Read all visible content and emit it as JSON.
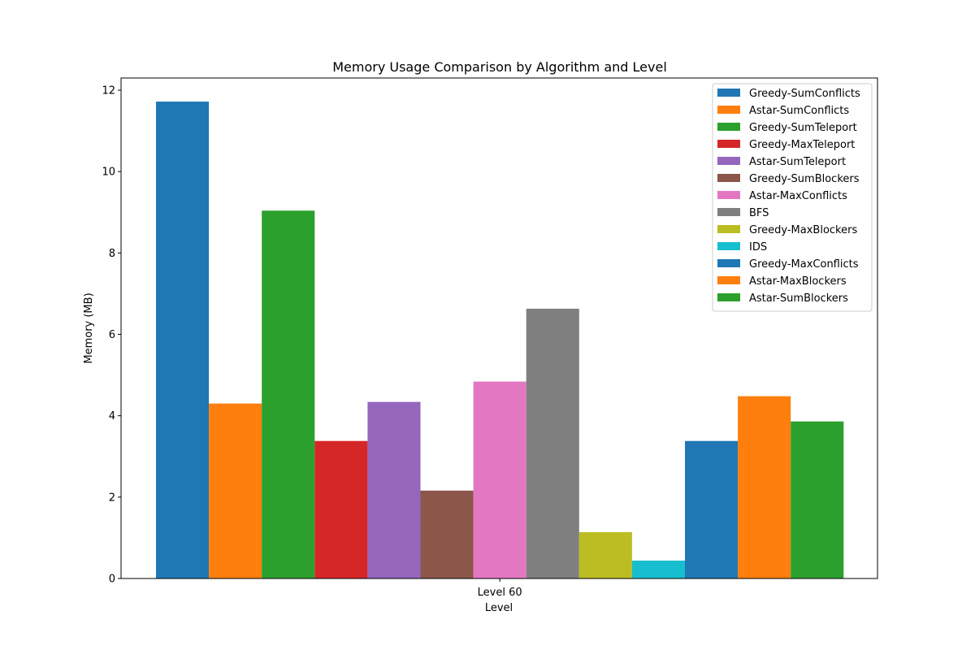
{
  "chart_data": {
    "type": "bar",
    "title": "Memory Usage Comparison by Algorithm and Level",
    "xlabel": "Level",
    "ylabel": "Memory (MB)",
    "categories": [
      "Level 60"
    ],
    "ylim": [
      0,
      12.3
    ],
    "yticks": [
      0,
      2,
      4,
      6,
      8,
      10,
      12
    ],
    "grid": false,
    "legend_position": "top-right",
    "series": [
      {
        "name": "Greedy-SumConflicts",
        "color": "#1f77b4",
        "values": [
          11.72
        ]
      },
      {
        "name": "Astar-SumConflicts",
        "color": "#ff7f0e",
        "values": [
          4.3
        ]
      },
      {
        "name": "Greedy-SumTeleport",
        "color": "#2ca02c",
        "values": [
          9.04
        ]
      },
      {
        "name": "Greedy-MaxTeleport",
        "color": "#d62728",
        "values": [
          3.38
        ]
      },
      {
        "name": "Astar-SumTeleport",
        "color": "#9467bd",
        "values": [
          4.34
        ]
      },
      {
        "name": "Greedy-SumBlockers",
        "color": "#8c564b",
        "values": [
          2.16
        ]
      },
      {
        "name": "Astar-MaxConflicts",
        "color": "#e377c2",
        "values": [
          4.84
        ]
      },
      {
        "name": "BFS",
        "color": "#7f7f7f",
        "values": [
          6.63
        ]
      },
      {
        "name": "Greedy-MaxBlockers",
        "color": "#bcbd22",
        "values": [
          1.14
        ]
      },
      {
        "name": "IDS",
        "color": "#17becf",
        "values": [
          0.44
        ]
      },
      {
        "name": "Greedy-MaxConflicts",
        "color": "#1f77b4",
        "values": [
          3.38
        ]
      },
      {
        "name": "Astar-MaxBlockers",
        "color": "#ff7f0e",
        "values": [
          4.48
        ]
      },
      {
        "name": "Astar-SumBlockers",
        "color": "#2ca02c",
        "values": [
          3.86
        ]
      }
    ]
  }
}
